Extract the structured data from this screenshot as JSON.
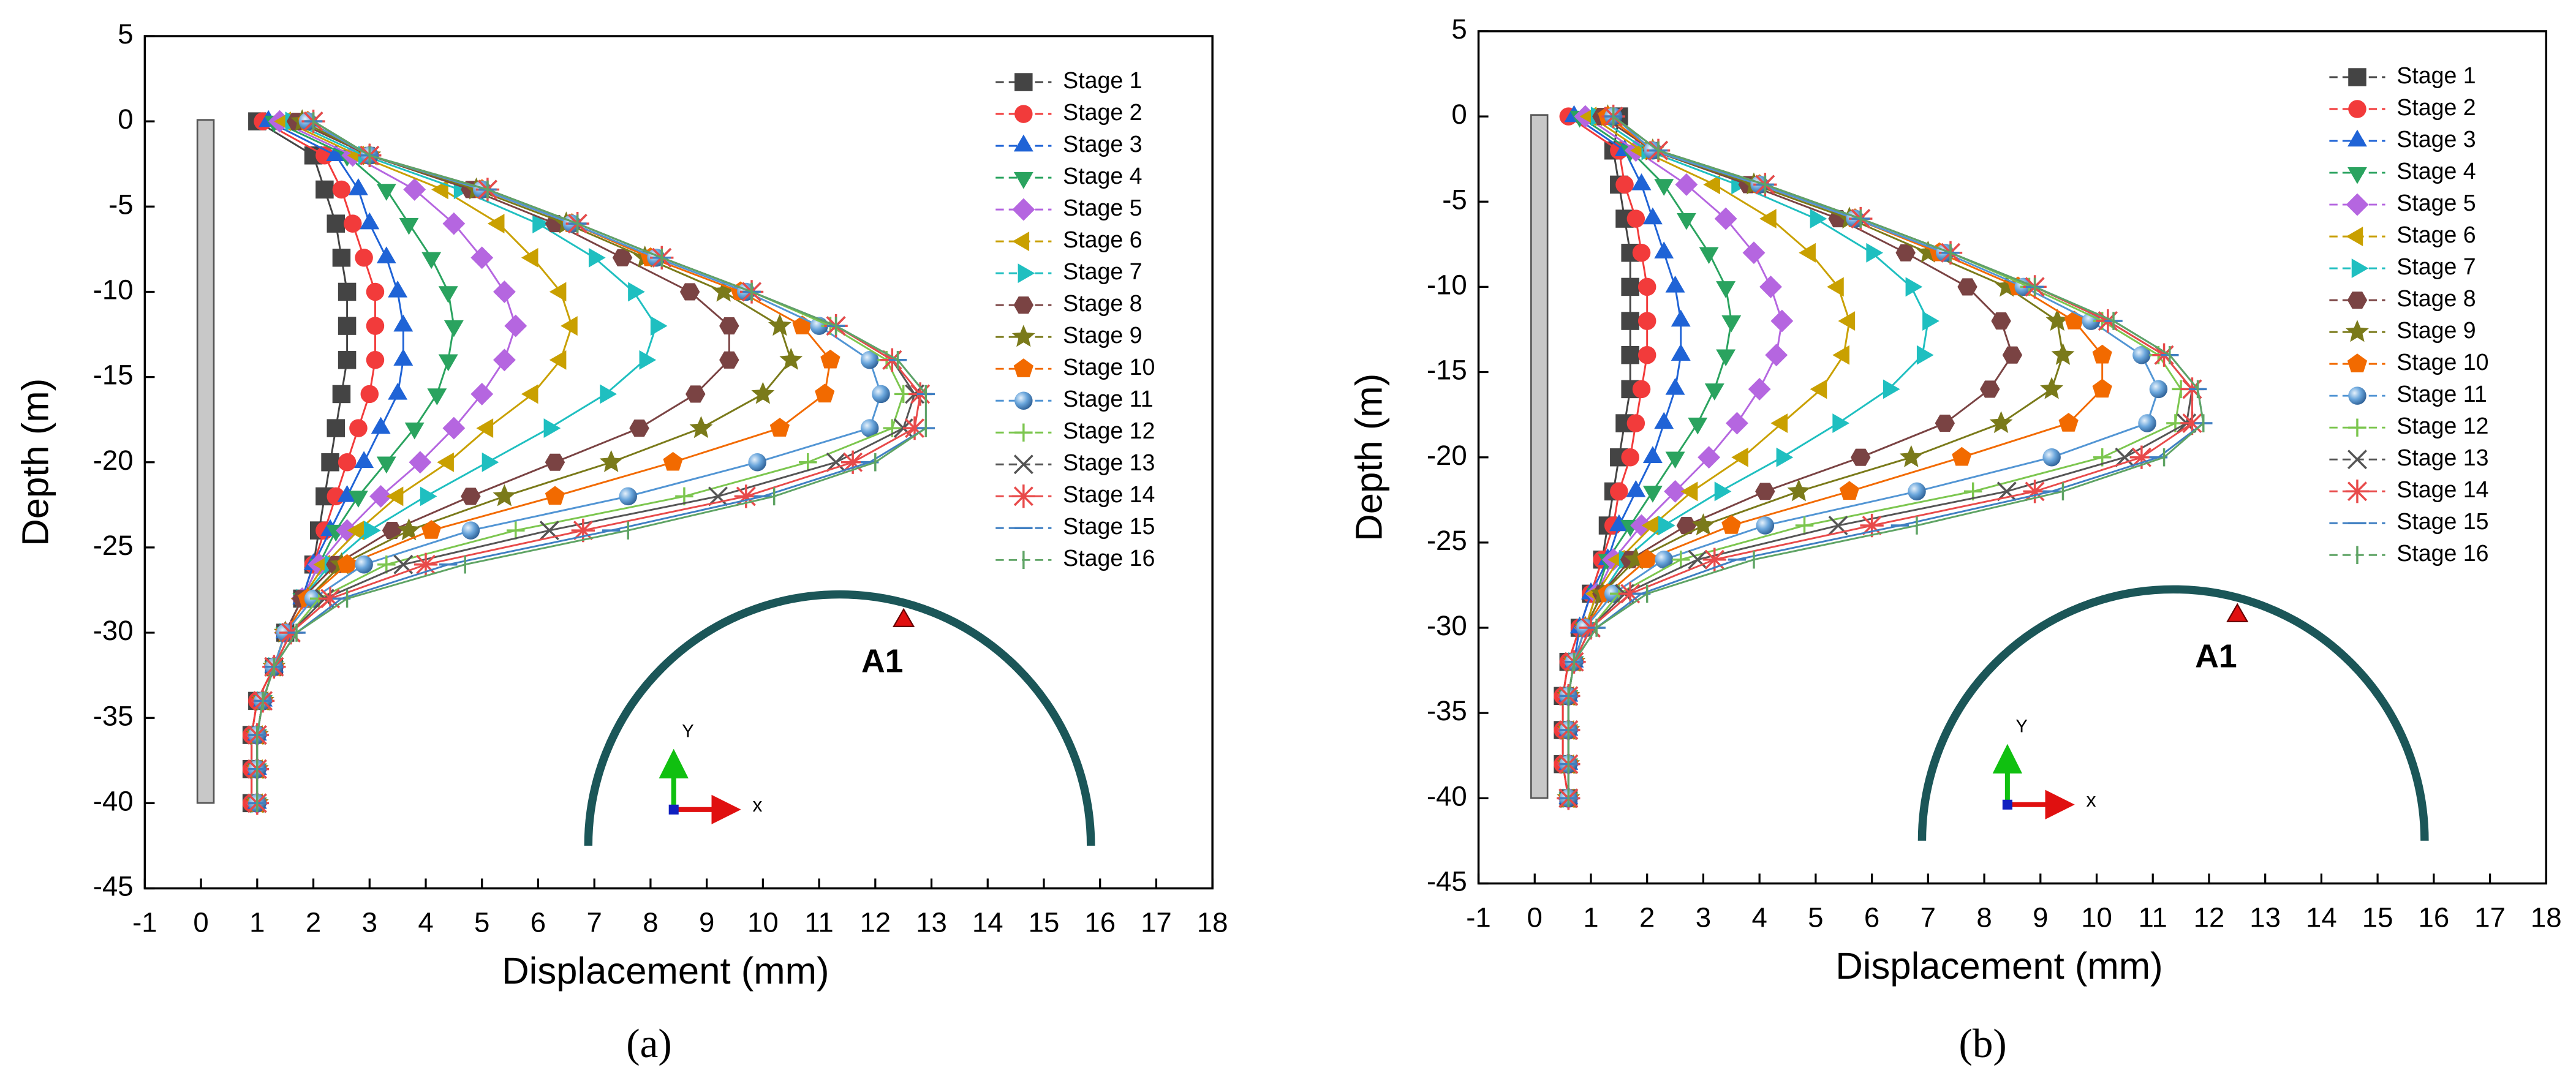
{
  "chart_data": [
    {
      "type": "line",
      "orientation": "horizontal",
      "panel_label": "(a)",
      "x_label": "Displacement (mm)",
      "y_label": "Depth (m)",
      "xlim": [
        -1,
        18
      ],
      "xticks": [
        -1,
        0,
        1,
        2,
        3,
        4,
        5,
        6,
        7,
        8,
        9,
        10,
        11,
        12,
        13,
        14,
        15,
        16,
        17,
        18
      ],
      "ylim": [
        -45,
        5
      ],
      "yticks": [
        5,
        0,
        -5,
        -10,
        -15,
        -20,
        -25,
        -30,
        -35,
        -40,
        -45
      ],
      "legend": "upper right",
      "annotation": "A1",
      "axis_icon_labels": [
        "x",
        "Y"
      ],
      "y": [
        0,
        -2,
        -4,
        -6,
        -8,
        -10,
        -12,
        -14,
        -16,
        -18,
        -20,
        -22,
        -24,
        -26,
        -28,
        -30,
        -32,
        -34,
        -36,
        -38,
        -40
      ],
      "series": [
        {
          "name": "Stage 1",
          "color": "#444444",
          "marker": "square",
          "values": [
            1.0,
            2.0,
            2.2,
            2.4,
            2.5,
            2.6,
            2.6,
            2.6,
            2.5,
            2.4,
            2.3,
            2.2,
            2.1,
            2.0,
            1.8,
            1.5,
            1.3,
            1.0,
            0.9,
            0.9,
            0.9
          ]
        },
        {
          "name": "Stage 2",
          "color": "#f23b3b",
          "marker": "circle",
          "values": [
            1.1,
            2.2,
            2.5,
            2.7,
            2.9,
            3.1,
            3.1,
            3.1,
            3.0,
            2.8,
            2.6,
            2.4,
            2.2,
            2.0,
            1.8,
            1.5,
            1.3,
            1.0,
            0.9,
            0.9,
            0.9
          ]
        },
        {
          "name": "Stage 3",
          "color": "#1f63d6",
          "marker": "triangle-up",
          "values": [
            1.2,
            2.4,
            2.8,
            3.0,
            3.3,
            3.5,
            3.6,
            3.6,
            3.5,
            3.2,
            2.9,
            2.6,
            2.3,
            2.0,
            1.8,
            1.5,
            1.3,
            1.1,
            1.0,
            1.0,
            1.0
          ]
        },
        {
          "name": "Stage 4",
          "color": "#2aa35f",
          "marker": "triangle-down",
          "values": [
            1.3,
            2.6,
            3.3,
            3.7,
            4.1,
            4.4,
            4.5,
            4.4,
            4.2,
            3.8,
            3.3,
            2.8,
            2.4,
            2.1,
            1.8,
            1.5,
            1.3,
            1.1,
            1.0,
            1.0,
            1.0
          ]
        },
        {
          "name": "Stage 5",
          "color": "#b566e0",
          "marker": "diamond",
          "values": [
            1.4,
            2.7,
            3.8,
            4.5,
            5.0,
            5.4,
            5.6,
            5.4,
            5.0,
            4.5,
            3.9,
            3.2,
            2.6,
            2.1,
            1.8,
            1.5,
            1.3,
            1.1,
            1.0,
            1.0,
            1.0
          ]
        },
        {
          "name": "Stage 6",
          "color": "#c9a000",
          "marker": "triangle-left",
          "values": [
            1.5,
            2.8,
            4.3,
            5.3,
            5.9,
            6.4,
            6.6,
            6.4,
            5.9,
            5.1,
            4.4,
            3.5,
            2.8,
            2.2,
            1.8,
            1.5,
            1.3,
            1.1,
            1.0,
            1.0,
            1.0
          ]
        },
        {
          "name": "Stage 7",
          "color": "#1fbfc0",
          "marker": "triangle-right",
          "values": [
            1.6,
            2.9,
            4.6,
            6.0,
            7.0,
            7.7,
            8.1,
            7.9,
            7.2,
            6.2,
            5.1,
            4.0,
            3.0,
            2.3,
            1.8,
            1.5,
            1.3,
            1.1,
            1.0,
            1.0,
            1.0
          ]
        },
        {
          "name": "Stage 8",
          "color": "#7a4343",
          "marker": "hexagon",
          "values": [
            1.7,
            3.0,
            4.8,
            6.3,
            7.5,
            8.7,
            9.4,
            9.4,
            8.8,
            7.8,
            6.3,
            4.8,
            3.4,
            2.4,
            1.8,
            1.5,
            1.3,
            1.1,
            1.0,
            1.0,
            1.0
          ]
        },
        {
          "name": "Stage 9",
          "color": "#7a7a1a",
          "marker": "star",
          "values": [
            1.8,
            3.0,
            4.9,
            6.5,
            7.9,
            9.3,
            10.3,
            10.5,
            10.0,
            8.9,
            7.3,
            5.4,
            3.7,
            2.5,
            1.9,
            1.5,
            1.3,
            1.1,
            1.0,
            1.0,
            1.0
          ]
        },
        {
          "name": "Stage 10",
          "color": "#f26a00",
          "marker": "pentagon",
          "values": [
            1.9,
            3.0,
            5.0,
            6.6,
            8.0,
            9.6,
            10.7,
            11.2,
            11.1,
            10.3,
            8.4,
            6.3,
            4.1,
            2.6,
            1.9,
            1.5,
            1.3,
            1.1,
            1.0,
            1.0,
            1.0
          ]
        },
        {
          "name": "Stage 11",
          "color": "#5295d4",
          "marker": "sphere",
          "values": [
            1.9,
            3.0,
            5.0,
            6.6,
            8.1,
            9.7,
            11.0,
            11.9,
            12.1,
            11.9,
            9.9,
            7.6,
            4.8,
            2.9,
            2.0,
            1.5,
            1.3,
            1.1,
            1.0,
            1.0,
            1.0
          ]
        },
        {
          "name": "Stage 12",
          "color": "#7cc64f",
          "marker": "plus",
          "values": [
            2.0,
            3.0,
            5.1,
            6.7,
            8.2,
            9.8,
            11.2,
            12.2,
            12.5,
            12.3,
            10.8,
            8.6,
            5.6,
            3.3,
            2.1,
            1.6,
            1.3,
            1.1,
            1.0,
            1.0,
            1.0
          ]
        },
        {
          "name": "Stage 13",
          "color": "#555555",
          "marker": "cross",
          "values": [
            2.0,
            3.0,
            5.1,
            6.7,
            8.2,
            9.8,
            11.3,
            12.3,
            12.7,
            12.5,
            11.3,
            9.2,
            6.2,
            3.6,
            2.2,
            1.6,
            1.3,
            1.1,
            1.0,
            1.0,
            1.0
          ]
        },
        {
          "name": "Stage 14",
          "color": "#e84a4a",
          "marker": "asterisk",
          "values": [
            2.0,
            3.0,
            5.1,
            6.7,
            8.2,
            9.8,
            11.3,
            12.3,
            12.8,
            12.7,
            11.6,
            9.7,
            6.8,
            4.0,
            2.3,
            1.6,
            1.3,
            1.1,
            1.0,
            1.0,
            1.0
          ]
        },
        {
          "name": "Stage 15",
          "color": "#3f7fc2",
          "marker": "dash",
          "values": [
            2.0,
            3.0,
            5.1,
            6.7,
            8.2,
            9.8,
            11.3,
            12.4,
            12.9,
            12.9,
            11.9,
            10.0,
            7.3,
            4.4,
            2.5,
            1.7,
            1.3,
            1.1,
            1.0,
            1.0,
            1.0
          ]
        },
        {
          "name": "Stage 16",
          "color": "#5fa465",
          "marker": "bar",
          "values": [
            2.0,
            3.0,
            5.1,
            6.7,
            8.2,
            9.8,
            11.3,
            12.4,
            12.9,
            12.9,
            12.0,
            10.2,
            7.6,
            4.7,
            2.6,
            1.7,
            1.3,
            1.1,
            1.0,
            1.0,
            1.0
          ]
        }
      ]
    },
    {
      "type": "line",
      "orientation": "horizontal",
      "panel_label": "(b)",
      "x_label": "Displacement (mm)",
      "y_label": "Depth (m)",
      "xlim": [
        -1,
        18
      ],
      "xticks": [
        -1,
        0,
        1,
        2,
        3,
        4,
        5,
        6,
        7,
        8,
        9,
        10,
        11,
        12,
        13,
        14,
        15,
        16,
        17,
        18
      ],
      "ylim": [
        -45,
        5
      ],
      "yticks": [
        5,
        0,
        -5,
        -10,
        -15,
        -20,
        -25,
        -30,
        -35,
        -40,
        -45
      ],
      "legend": "upper right",
      "annotation": "A1",
      "axis_icon_labels": [
        "x",
        "Y"
      ],
      "y": [
        0,
        -2,
        -4,
        -6,
        -8,
        -10,
        -12,
        -14,
        -16,
        -18,
        -20,
        -22,
        -24,
        -26,
        -28,
        -30,
        -32,
        -34,
        -36,
        -38,
        -40
      ],
      "series": [
        {
          "name": "Stage 1",
          "color": "#444444",
          "marker": "square",
          "values": [
            1.5,
            1.4,
            1.5,
            1.6,
            1.7,
            1.7,
            1.7,
            1.7,
            1.7,
            1.6,
            1.5,
            1.4,
            1.3,
            1.2,
            1.0,
            0.8,
            0.6,
            0.5,
            0.5,
            0.5,
            0.6
          ]
        },
        {
          "name": "Stage 2",
          "color": "#f23b3b",
          "marker": "circle",
          "values": [
            0.6,
            1.5,
            1.6,
            1.8,
            1.9,
            2.0,
            2.0,
            2.0,
            1.9,
            1.8,
            1.7,
            1.5,
            1.4,
            1.2,
            1.0,
            0.8,
            0.6,
            0.5,
            0.5,
            0.5,
            0.6
          ]
        },
        {
          "name": "Stage 3",
          "color": "#1f63d6",
          "marker": "triangle-up",
          "values": [
            0.7,
            1.6,
            1.9,
            2.1,
            2.3,
            2.5,
            2.6,
            2.6,
            2.5,
            2.3,
            2.1,
            1.8,
            1.5,
            1.3,
            1.0,
            0.8,
            0.7,
            0.6,
            0.6,
            0.6,
            0.6
          ]
        },
        {
          "name": "Stage 4",
          "color": "#2aa35f",
          "marker": "triangle-down",
          "values": [
            0.8,
            1.7,
            2.3,
            2.7,
            3.1,
            3.4,
            3.5,
            3.4,
            3.2,
            2.9,
            2.5,
            2.1,
            1.7,
            1.3,
            1.1,
            0.9,
            0.7,
            0.6,
            0.6,
            0.6,
            0.6
          ]
        },
        {
          "name": "Stage 5",
          "color": "#b566e0",
          "marker": "diamond",
          "values": [
            0.9,
            1.8,
            2.7,
            3.4,
            3.9,
            4.2,
            4.4,
            4.3,
            4.0,
            3.6,
            3.1,
            2.5,
            1.9,
            1.4,
            1.1,
            0.9,
            0.7,
            0.6,
            0.6,
            0.6,
            0.6
          ]
        },
        {
          "name": "Stage 6",
          "color": "#c9a000",
          "marker": "triangle-left",
          "values": [
            1.0,
            1.9,
            3.2,
            4.2,
            4.9,
            5.4,
            5.6,
            5.5,
            5.1,
            4.4,
            3.7,
            2.8,
            2.1,
            1.5,
            1.1,
            0.9,
            0.7,
            0.6,
            0.6,
            0.6,
            0.6
          ]
        },
        {
          "name": "Stage 7",
          "color": "#1fbfc0",
          "marker": "triangle-right",
          "values": [
            1.1,
            2.0,
            3.6,
            5.0,
            6.0,
            6.7,
            7.0,
            6.9,
            6.3,
            5.4,
            4.4,
            3.3,
            2.3,
            1.6,
            1.2,
            0.9,
            0.7,
            0.6,
            0.6,
            0.6,
            0.6
          ]
        },
        {
          "name": "Stage 8",
          "color": "#7a4343",
          "marker": "hexagon",
          "values": [
            1.2,
            2.1,
            3.8,
            5.4,
            6.6,
            7.7,
            8.3,
            8.5,
            8.1,
            7.3,
            5.8,
            4.1,
            2.7,
            1.7,
            1.2,
            0.9,
            0.7,
            0.6,
            0.6,
            0.6,
            0.6
          ]
        },
        {
          "name": "Stage 9",
          "color": "#7a7a1a",
          "marker": "star",
          "values": [
            1.3,
            2.1,
            3.9,
            5.6,
            7.0,
            8.4,
            9.3,
            9.4,
            9.2,
            8.3,
            6.7,
            4.7,
            3.0,
            1.8,
            1.2,
            0.9,
            0.7,
            0.6,
            0.6,
            0.6,
            0.6
          ]
        },
        {
          "name": "Stage 10",
          "color": "#f26a00",
          "marker": "pentagon",
          "values": [
            1.3,
            2.1,
            4.0,
            5.7,
            7.2,
            8.6,
            9.6,
            10.1,
            10.1,
            9.5,
            7.6,
            5.6,
            3.5,
            2.0,
            1.3,
            0.9,
            0.7,
            0.6,
            0.6,
            0.6,
            0.6
          ]
        },
        {
          "name": "Stage 11",
          "color": "#5295d4",
          "marker": "sphere",
          "values": [
            1.4,
            2.1,
            4.0,
            5.7,
            7.3,
            8.7,
            9.9,
            10.8,
            11.1,
            10.9,
            9.2,
            6.8,
            4.1,
            2.3,
            1.4,
            0.9,
            0.7,
            0.6,
            0.6,
            0.6,
            0.6
          ]
        },
        {
          "name": "Stage 12",
          "color": "#7cc64f",
          "marker": "plus",
          "values": [
            1.4,
            2.2,
            4.1,
            5.8,
            7.4,
            8.8,
            10.1,
            11.1,
            11.5,
            11.4,
            10.1,
            7.8,
            4.8,
            2.6,
            1.5,
            1.0,
            0.7,
            0.6,
            0.6,
            0.6,
            0.6
          ]
        },
        {
          "name": "Stage 13",
          "color": "#555555",
          "marker": "cross",
          "values": [
            1.4,
            2.2,
            4.1,
            5.8,
            7.4,
            8.9,
            10.2,
            11.2,
            11.7,
            11.6,
            10.5,
            8.4,
            5.4,
            2.9,
            1.6,
            1.0,
            0.7,
            0.6,
            0.6,
            0.6,
            0.6
          ]
        },
        {
          "name": "Stage 14",
          "color": "#e84a4a",
          "marker": "asterisk",
          "values": [
            1.4,
            2.2,
            4.1,
            5.8,
            7.4,
            8.9,
            10.2,
            11.2,
            11.7,
            11.7,
            10.8,
            8.9,
            6.0,
            3.2,
            1.7,
            1.0,
            0.7,
            0.6,
            0.6,
            0.6,
            0.6
          ]
        },
        {
          "name": "Stage 15",
          "color": "#3f7fc2",
          "marker": "dash",
          "values": [
            1.4,
            2.2,
            4.1,
            5.8,
            7.4,
            8.9,
            10.3,
            11.3,
            11.8,
            11.9,
            11.1,
            9.2,
            6.5,
            3.6,
            1.9,
            1.1,
            0.7,
            0.6,
            0.6,
            0.6,
            0.6
          ]
        },
        {
          "name": "Stage 16",
          "color": "#5fa465",
          "marker": "bar",
          "values": [
            1.4,
            2.2,
            4.1,
            5.8,
            7.4,
            8.9,
            10.3,
            11.3,
            11.8,
            11.9,
            11.2,
            9.4,
            6.8,
            3.9,
            2.0,
            1.1,
            0.7,
            0.6,
            0.6,
            0.6,
            0.6
          ]
        }
      ]
    }
  ]
}
